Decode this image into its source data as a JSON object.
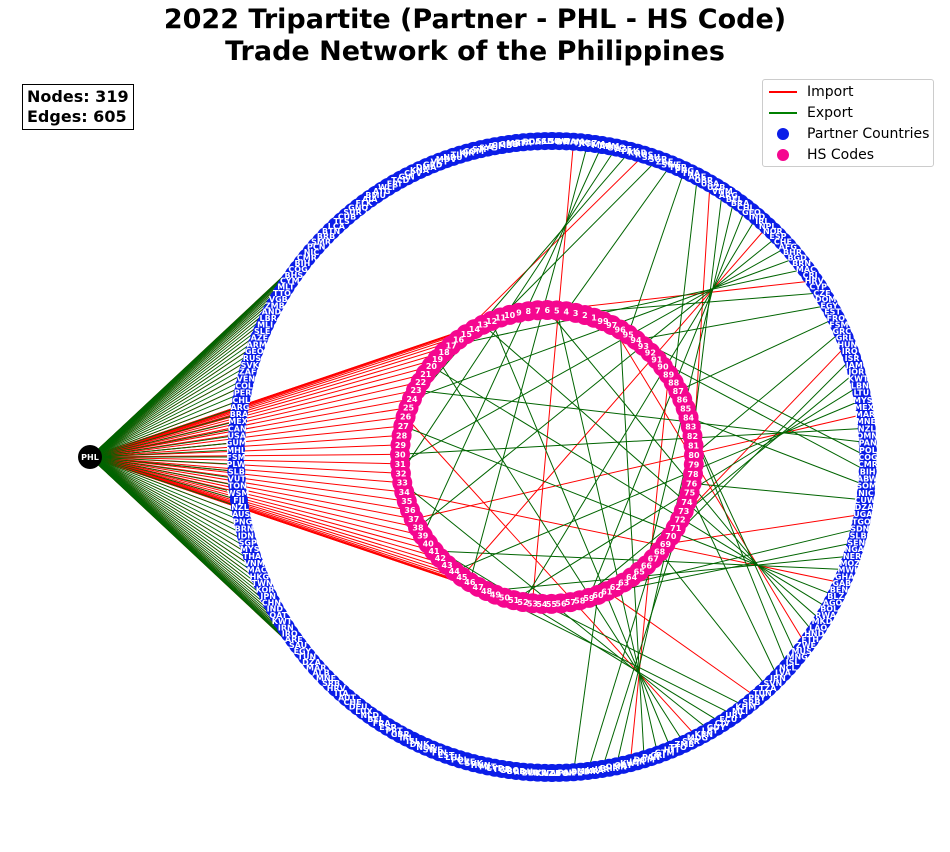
{
  "title": {
    "line1": "2022 Tripartite (Partner - PHL - HS Code)",
    "line2": "Trade Network of the Philippines"
  },
  "stats": {
    "nodes_text": "Nodes: 319",
    "edges_text": "Edges: 605"
  },
  "legend": [
    {
      "label": "Import",
      "kind": "line",
      "color": "#ff0000"
    },
    {
      "label": "Export",
      "kind": "line",
      "color": "#008000"
    },
    {
      "label": "Partner Countries",
      "kind": "dot",
      "color": "#0b1de8"
    },
    {
      "label": "HS Codes",
      "kind": "dot",
      "color": "#f5078f"
    }
  ],
  "colors": {
    "import": "#ff0000",
    "export": "#006400",
    "partner": "#0b1de8",
    "hs": "#f5078f",
    "center": "#000000"
  },
  "center_node": {
    "label": "PHL"
  },
  "partners": [
    "COG",
    "CMR",
    "BIH",
    "ABW",
    "SOM",
    "NIC",
    "CUW",
    "DZA",
    "UGA",
    "TGO",
    "SDN",
    "SLB",
    "SEN",
    "NGA",
    "NER",
    "MOZ",
    "MWI",
    "GHA",
    "GAB",
    "BEN",
    "BLZ",
    "AGO",
    "BOL",
    "RWA",
    "MKD",
    "LAO",
    "HND",
    "ETH",
    "ZWE",
    "MUS",
    "MNG",
    "ISL",
    "NCL",
    "LVA",
    "IRN",
    "SVN",
    "TZA",
    "TUN",
    "PRY",
    "SRB",
    "KHM",
    "MLI",
    "URY",
    "ECU",
    "CIV",
    "GUY",
    "LBY",
    "KEN",
    "MDG",
    "SYR",
    "ZMB",
    "TTO",
    "HTI",
    "GTM",
    "CRI",
    "PAN",
    "DOM",
    "JOR",
    "KWT",
    "QAT",
    "OMN",
    "BHR",
    "ISR",
    "LKA",
    "MMR",
    "BGD",
    "NPL",
    "PAK",
    "AFG",
    "UZB",
    "KAZ",
    "UKR",
    "BLR",
    "ROU",
    "BGR",
    "GRC",
    "TUR",
    "CYP",
    "MLT",
    "HUN",
    "SVK",
    "CZE",
    "POL",
    "LTU",
    "EST",
    "FIN",
    "SWE",
    "NOR",
    "DNK",
    "ISL",
    "IRL",
    "GBR",
    "PRT",
    "ESP",
    "FRA",
    "BEL",
    "NLD",
    "LUX",
    "DEU",
    "CHE",
    "AUT",
    "ITA",
    "HRV",
    "SRB",
    "MNE",
    "ALB",
    "MAR",
    "DZA",
    "TUN",
    "EGY",
    "SAU",
    "ARE",
    "IRQ",
    "IRN",
    "KWT",
    "QAT",
    "IND",
    "CHN",
    "JPN",
    "KOR",
    "TWN",
    "HKG",
    "MAC",
    "VNM",
    "THA",
    "MYS",
    "SGP",
    "IDN",
    "BRN",
    "PNG",
    "AUS",
    "NZL",
    "FJI",
    "WSM",
    "TON",
    "VUT",
    "SLB",
    "PLW",
    "FSM",
    "MHL",
    "GUM",
    "USA",
    "CAN",
    "MEX",
    "BRA",
    "ARG",
    "CHL",
    "PER",
    "COL",
    "VEN",
    "ZAF",
    "SVK",
    "RUS",
    "GEO",
    "ARM",
    "AZE",
    "SLE",
    "MLI",
    "LBR",
    "AND",
    "ZMB",
    "VGB",
    "TTO",
    "MLT",
    "CYM",
    "BHS",
    "COG",
    "BIH",
    "CMR",
    "NIC",
    "PCN",
    "SMR",
    "BRB",
    "BTN",
    "LCA",
    "TLS",
    "CUB",
    "SUR",
    "GNQ",
    "FLK",
    "AIA",
    "BMU",
    "ATG",
    "WLF",
    "ERI",
    "TCD",
    "GIN",
    "CPV",
    "KNA",
    "DMA",
    "GRD",
    "VCT",
    "MDV",
    "NRU",
    "TUV",
    "KIR",
    "COM",
    "STP",
    "SYC",
    "DJI",
    "GMB",
    "GNB",
    "MRT",
    "BFA",
    "BDI",
    "CAF",
    "SSD",
    "LSO",
    "SWZ",
    "BWA",
    "NAM",
    "TJK",
    "KGZ",
    "TKM",
    "MDA",
    "ARM",
    "GEO",
    "AZE",
    "PAK",
    "KOR",
    "RUS",
    "SAU",
    "SGP",
    "ZAF",
    "SWE",
    "TUR",
    "PNG",
    "THA",
    "ARE",
    "GBR",
    "USA",
    "UZB",
    "VNM",
    "ARG",
    "BEL",
    "BRA",
    "CHL",
    "GEO",
    "IND",
    "IRL",
    "NPL",
    "NOR",
    "ESP",
    "CHE",
    "AFG",
    "BHR",
    "BGD",
    "BRN",
    "MAC",
    "CRI",
    "HRV",
    "CYP",
    "CZE",
    "DOM",
    "EGY",
    "EST",
    "FRO",
    "FSM",
    "GRC",
    "GRL",
    "HUN",
    "IRQ",
    "ISR",
    "JAM",
    "JOR",
    "KWT",
    "LBN",
    "LTU",
    "MYS",
    "MEX",
    "MAR",
    "MNE",
    "NZL",
    "OMN",
    "PAN",
    "POL"
  ],
  "hs_codes": [
    "99",
    "97",
    "96",
    "95",
    "94",
    "93",
    "92",
    "91",
    "90",
    "89",
    "88",
    "87",
    "86",
    "85",
    "84",
    "83",
    "82",
    "81",
    "80",
    "79",
    "78",
    "76",
    "75",
    "74",
    "73",
    "72",
    "71",
    "70",
    "69",
    "68",
    "67",
    "66",
    "65",
    "64",
    "63",
    "62",
    "61",
    "60",
    "59",
    "58",
    "57",
    "56",
    "55",
    "54",
    "53",
    "52",
    "51",
    "50",
    "49",
    "48",
    "47",
    "46",
    "45",
    "44",
    "43",
    "42",
    "41",
    "40",
    "39",
    "38",
    "37",
    "36",
    "35",
    "34",
    "33",
    "32",
    "31",
    "30",
    "29",
    "28",
    "27",
    "26",
    "25",
    "24",
    "23",
    "22",
    "21",
    "20",
    "19",
    "18",
    "17",
    "16",
    "15",
    "14",
    "13",
    "12",
    "11",
    "10",
    "9",
    "8",
    "7",
    "6",
    "5",
    "4",
    "3",
    "2",
    "1"
  ]
}
